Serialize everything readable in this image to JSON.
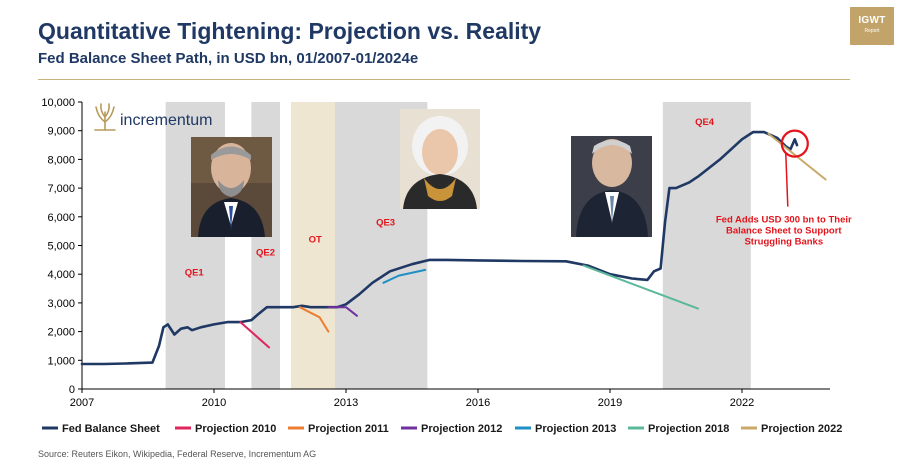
{
  "header": {
    "title": "Quantitative Tightening: Projection vs. Reality",
    "subtitle": "Fed Balance Sheet Path, in USD bn, 01/2007-01/2024e"
  },
  "badge": {
    "title": "IGWT",
    "sub": "Report",
    "color": "#c2a46a"
  },
  "logo": {
    "name": "incrementum",
    "icon": "tree-icon",
    "color": "#1f3864",
    "icon_color": "#b89a5a"
  },
  "photos": [
    {
      "name": "portrait-bernanke",
      "icon": "portrait-icon"
    },
    {
      "name": "portrait-yellen",
      "icon": "portrait-icon"
    },
    {
      "name": "portrait-powell",
      "icon": "portrait-icon"
    }
  ],
  "source": "Source: Reuters Eikon, Wikipedia, Federal Reserve, Incrementum AG",
  "chart_data": {
    "type": "line",
    "x_range": [
      2007.0,
      2024.0
    ],
    "ylim": [
      0,
      10000
    ],
    "yticks": [
      0,
      1000,
      2000,
      3000,
      4000,
      5000,
      6000,
      7000,
      8000,
      9000,
      10000
    ],
    "ytick_labels": [
      "0",
      "1,000",
      "2,000",
      "3,000",
      "4,000",
      "5,000",
      "6,000",
      "7,000",
      "8,000",
      "9,000",
      "10,000"
    ],
    "xticks": [
      2007,
      2010,
      2013,
      2016,
      2019,
      2022
    ],
    "xtick_labels": [
      "2007",
      "2010",
      "2013",
      "2016",
      "2019",
      "2022"
    ],
    "grid": false,
    "legend_position": "bottom",
    "shaded_regions": [
      {
        "label": "QE1",
        "start": 2008.9,
        "end": 2010.25,
        "color": "#d9d9d9"
      },
      {
        "label": "QE2",
        "start": 2010.85,
        "end": 2011.5,
        "color": "#d9d9d9"
      },
      {
        "label": "OT",
        "start": 2011.75,
        "end": 2012.75,
        "color": "#efe6d2"
      },
      {
        "label": "",
        "start": 2012.75,
        "end": 2013.0,
        "color": "#d9d9d9"
      },
      {
        "label": "QE3",
        "start": 2013.0,
        "end": 2014.85,
        "color": "#d9d9d9"
      },
      {
        "label": "QE4",
        "start": 2020.2,
        "end": 2022.2,
        "color": "#d9d9d9"
      }
    ],
    "region_labels": [
      {
        "text": "QE1",
        "x": 2009.55,
        "y": 3950
      },
      {
        "text": "QE2",
        "x": 2011.17,
        "y": 4650
      },
      {
        "text": "OT",
        "x": 2012.3,
        "y": 5100
      },
      {
        "text": "QE3",
        "x": 2013.9,
        "y": 5700
      },
      {
        "text": "QE4",
        "x": 2021.15,
        "y": 9200
      }
    ],
    "annotation": {
      "lines": [
        "Fed Adds USD 300 bn to Their",
        "Balance Sheet to Support",
        "Struggling Banks"
      ],
      "x": 2022.95,
      "y": 5800,
      "circle_x": 2023.2,
      "circle_y": 8550
    },
    "series": [
      {
        "name": "Fed Balance Sheet",
        "color": "#1f3864",
        "width": 2.6,
        "x": [
          2007.0,
          2007.5,
          2008.0,
          2008.6,
          2008.75,
          2008.85,
          2008.95,
          2009.1,
          2009.25,
          2009.4,
          2009.5,
          2009.7,
          2010.0,
          2010.3,
          2010.6,
          2010.85,
          2011.0,
          2011.2,
          2011.5,
          2011.8,
          2012.0,
          2012.2,
          2012.5,
          2012.8,
          2013.0,
          2013.3,
          2013.6,
          2014.0,
          2014.5,
          2014.9,
          2015.3,
          2016.0,
          2017.0,
          2018.0,
          2018.5,
          2019.0,
          2019.5,
          2019.85,
          2020.0,
          2020.15,
          2020.25,
          2020.35,
          2020.5,
          2020.8,
          2021.0,
          2021.5,
          2022.0,
          2022.25,
          2022.5,
          2022.8,
          2023.0,
          2023.1,
          2023.2,
          2023.25
        ],
        "y": [
          870,
          870,
          890,
          920,
          1500,
          2150,
          2250,
          1900,
          2100,
          2150,
          2050,
          2150,
          2250,
          2330,
          2330,
          2400,
          2600,
          2850,
          2850,
          2850,
          2900,
          2850,
          2850,
          2850,
          2950,
          3300,
          3700,
          4100,
          4350,
          4500,
          4500,
          4480,
          4460,
          4450,
          4300,
          4000,
          3850,
          3800,
          4100,
          4200,
          5800,
          7000,
          7000,
          7200,
          7400,
          8000,
          8700,
          8950,
          8950,
          8750,
          8450,
          8350,
          8700,
          8500
        ]
      },
      {
        "name": "Projection 2010",
        "color": "#e0245e",
        "width": 2,
        "x": [
          2010.6,
          2011.25
        ],
        "y": [
          2330,
          1450
        ]
      },
      {
        "name": "Projection 2011",
        "color": "#ed7d31",
        "width": 2,
        "x": [
          2011.95,
          2012.4,
          2012.6
        ],
        "y": [
          2850,
          2500,
          2000
        ]
      },
      {
        "name": "Projection 2012",
        "color": "#7030a0",
        "width": 2,
        "x": [
          2012.6,
          2013.0,
          2013.25
        ],
        "y": [
          2850,
          2850,
          2550
        ]
      },
      {
        "name": "Projection 2013",
        "color": "#1f8fc6",
        "width": 2,
        "x": [
          2013.85,
          2014.2,
          2014.8
        ],
        "y": [
          3700,
          3950,
          4150
        ]
      },
      {
        "name": "Projection 2018",
        "color": "#5bb89a",
        "width": 2,
        "x": [
          2018.4,
          2021.0
        ],
        "y": [
          4300,
          2800
        ]
      },
      {
        "name": "Projection 2022",
        "color": "#c9a968",
        "width": 2,
        "x": [
          2022.6,
          2023.9
        ],
        "y": [
          8900,
          7300
        ]
      }
    ]
  }
}
